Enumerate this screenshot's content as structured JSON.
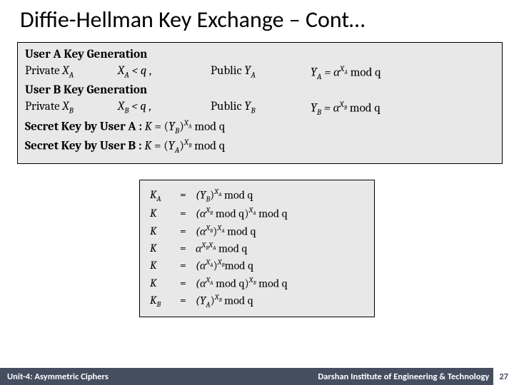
{
  "title": "Diffie-Hellman Key Exchange – Cont…",
  "box1": {
    "background": "#e8e8e8",
    "border": "#000000",
    "userA_header": "User A Key Generation",
    "userA_private_label": "Private ",
    "userA_private_var": "X",
    "userA_private_sub": "A",
    "userA_cond_var": "X",
    "userA_cond_sub": "A",
    "userA_cond_rest": " < q ,",
    "userA_public_label": "Public ",
    "userA_public_var": "Y",
    "userA_public_sub": "A",
    "userA_formula_Y": "Y",
    "userA_formula_Ysub": "A",
    "userA_formula_eq": " = α",
    "userA_formula_expX": "X",
    "userA_formula_expA": "A",
    "userA_formula_mod": " mod q",
    "userB_header": "User B Key Generation",
    "userB_private_label": "Private ",
    "userB_private_var": "X",
    "userB_private_sub": "B",
    "userB_cond_var": "X",
    "userB_cond_sub": "B",
    "userB_cond_rest": " < q ,",
    "userB_public_label": "Public ",
    "userB_public_var": "Y",
    "userB_public_sub": "B",
    "userB_formula_Y": "Y",
    "userB_formula_Ysub": "B",
    "userB_formula_eq": " = α",
    "userB_formula_expX": "X",
    "userB_formula_expB": "B",
    "userB_formula_mod": " mod q",
    "secretA_label": "Secret Key by User A : ",
    "secretA_K": "K",
    "secretA_eq": "  =   (",
    "secretA_Y": "Y",
    "secretA_Ysub": "B",
    "secretA_rp": ")",
    "secretA_expX": "X",
    "secretA_expA": "A",
    "secretA_mod": " mod q",
    "secretB_label": "Secret Key by User B : ",
    "secretB_K": "K",
    "secretB_eq": "  =   (",
    "secretB_Y": "Y",
    "secretB_Ysub": "A",
    "secretB_rp": ")",
    "secretB_expX": "X",
    "secretB_expB": "B",
    "secretB_mod": " mod q"
  },
  "box2": {
    "background": "#e8e8e8",
    "border": "#000000",
    "rows": [
      {
        "lhs_var": "K",
        "lhs_sub": "A",
        "rhs_pre": "(",
        "rhs_Y": "Y",
        "rhs_Ysub": "B",
        "rhs_mid": ")",
        "rhs_expX": "X",
        "rhs_expS": "A",
        "rhs_post": " mod q"
      },
      {
        "lhs_var": "K",
        "lhs_sub": "",
        "rhs_pre": "(α",
        "rhs_iexpX": "X",
        "rhs_iexpS": "B",
        "rhs_imod": " mod q)",
        "rhs_expX": "X",
        "rhs_expS": "A",
        "rhs_post": " mod q"
      },
      {
        "lhs_var": "K",
        "lhs_sub": "",
        "rhs_pre": "(α",
        "rhs_iexpX": "X",
        "rhs_iexpS": "B",
        "rhs_mid": ")",
        "rhs_expX": "X",
        "rhs_expS": "A",
        "rhs_post": " mod q"
      },
      {
        "lhs_var": "K",
        "lhs_sub": "",
        "rhs_pre": "α",
        "rhs_dexpX1": "X",
        "rhs_dexpS1": "B",
        "rhs_dexpX2": "X",
        "rhs_dexpS2": "A",
        "rhs_post": " mod q"
      },
      {
        "lhs_var": "K",
        "lhs_sub": "",
        "rhs_pre": "(α",
        "rhs_iexpX": "X",
        "rhs_iexpS": "A",
        "rhs_mid": ")",
        "rhs_expX": "X",
        "rhs_expS": "B",
        "rhs_post": "mod q"
      },
      {
        "lhs_var": "K",
        "lhs_sub": "",
        "rhs_pre": "(α",
        "rhs_iexpX": "X",
        "rhs_iexpS": "A",
        "rhs_imod": " mod q)",
        "rhs_expX": "X",
        "rhs_expS": "B",
        "rhs_post": " mod q"
      },
      {
        "lhs_var": "K",
        "lhs_sub": "B",
        "rhs_pre": "(",
        "rhs_Y": "Y",
        "rhs_Ysub": "A",
        "rhs_mid": ")",
        "rhs_expX": "X",
        "rhs_expS": "B",
        "rhs_post": " mod q"
      }
    ]
  },
  "footer": {
    "left": "Unit-4: Asymmetric Ciphers",
    "right": "Darshan Institute of Engineering & Technology",
    "page": "27",
    "bg": "#444e5f",
    "fg": "#ffffff"
  }
}
